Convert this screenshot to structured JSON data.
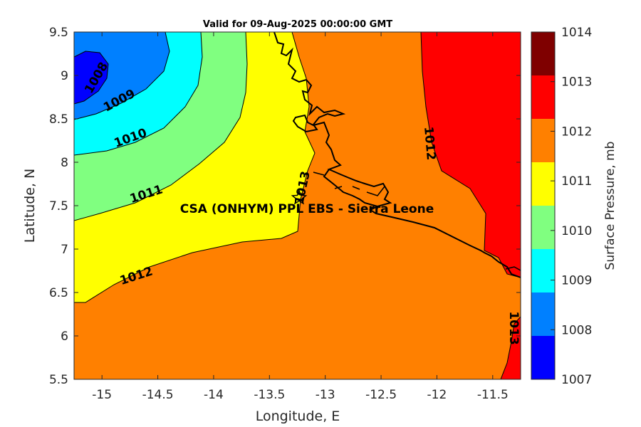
{
  "title": "Valid for 09-Aug-2025 00:00:00 GMT",
  "station_label": "CSA (ONHYM) PPL EBS  - Sierra Leone",
  "x_axis": {
    "label": "Longitude, E",
    "ticks": [
      "-15",
      "-14.5",
      "-14",
      "-13.5",
      "-13",
      "-12.5",
      "-12",
      "-11.5"
    ]
  },
  "y_axis": {
    "label": "Latitude, N",
    "ticks": [
      "9.5",
      "9",
      "8.5",
      "8",
      "7.5",
      "7",
      "6.5",
      "6",
      "5.5"
    ]
  },
  "colorbar": {
    "label": "Surface Pressure, mb",
    "ticks": [
      "1014",
      "1013",
      "1012",
      "1011",
      "1010",
      "1009",
      "1008",
      "1007"
    ],
    "colors": [
      "#7f0000",
      "#ff0000",
      "#ff8000",
      "#ffff00",
      "#80ff80",
      "#00ffff",
      "#0080ff",
      "#0000ff"
    ]
  },
  "contour_labels": [
    "1008",
    "1009",
    "1010",
    "1011",
    "1012",
    "1013",
    "1013",
    "1012"
  ],
  "chart_data": {
    "type": "heatmap",
    "title": "Valid for 09-Aug-2025 00:00:00 GMT",
    "xlabel": "Longitude, E",
    "ylabel": "Latitude, N",
    "xlim": [
      -15.25,
      -11.25
    ],
    "ylim": [
      5.5,
      9.5
    ],
    "colorbar_label": "Surface Pressure, mb",
    "color_levels": [
      1007,
      1008,
      1009,
      1010,
      1011,
      1012,
      1013,
      1014
    ],
    "contours": [
      1008,
      1009,
      1010,
      1011,
      1012,
      1013
    ],
    "station": {
      "name": "CSA (ONHYM) PPL EBS  - Sierra Leone",
      "lon": -13.25,
      "lat": 7.6
    }
  }
}
